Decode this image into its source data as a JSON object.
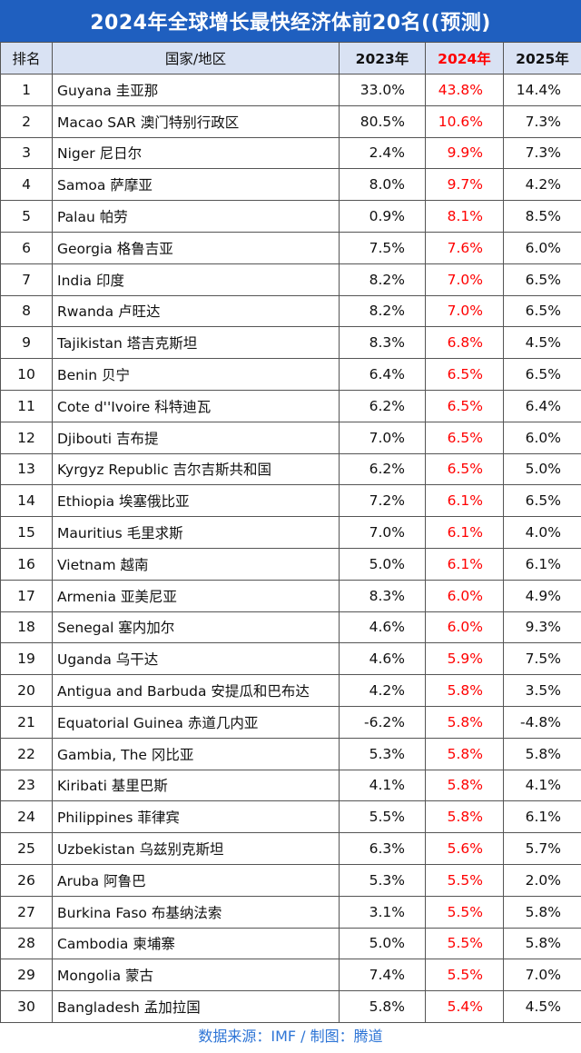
{
  "title": "2024年全球增长最快经济体前20名((预测)",
  "source_note": "数据来源：IMF / 制图：腾道",
  "colors": {
    "header_bar": "#1f5fbf",
    "header_row": "#d9e2f3",
    "highlight": "#ff0000",
    "source_text": "#2e75d6"
  },
  "chart_data": {
    "type": "table",
    "columns": [
      "排名",
      "国家/地区",
      "2023年",
      "2024年",
      "2025年"
    ],
    "highlighted_column": "2024年",
    "rows": [
      [
        "1",
        "Guyana 圭亚那",
        "33.0%",
        "43.8%",
        "14.4%"
      ],
      [
        "2",
        "Macao SAR 澳门特别行政区",
        "80.5%",
        "10.6%",
        "7.3%"
      ],
      [
        "3",
        "Niger 尼日尔",
        "2.4%",
        "9.9%",
        "7.3%"
      ],
      [
        "4",
        "Samoa 萨摩亚",
        "8.0%",
        "9.7%",
        "4.2%"
      ],
      [
        "5",
        "Palau 帕劳",
        "0.9%",
        "8.1%",
        "8.5%"
      ],
      [
        "6",
        "Georgia 格鲁吉亚",
        "7.5%",
        "7.6%",
        "6.0%"
      ],
      [
        "7",
        "India 印度",
        "8.2%",
        "7.0%",
        "6.5%"
      ],
      [
        "8",
        "Rwanda 卢旺达",
        "8.2%",
        "7.0%",
        "6.5%"
      ],
      [
        "9",
        "Tajikistan 塔吉克斯坦",
        "8.3%",
        "6.8%",
        "4.5%"
      ],
      [
        "10",
        "Benin 贝宁",
        "6.4%",
        "6.5%",
        "6.5%"
      ],
      [
        "11",
        "Cote d''Ivoire 科特迪瓦",
        "6.2%",
        "6.5%",
        "6.4%"
      ],
      [
        "12",
        "Djibouti 吉布提",
        "7.0%",
        "6.5%",
        "6.0%"
      ],
      [
        "13",
        "Kyrgyz Republic 吉尔吉斯共和国",
        "6.2%",
        "6.5%",
        "5.0%"
      ],
      [
        "14",
        "Ethiopia 埃塞俄比亚",
        "7.2%",
        "6.1%",
        "6.5%"
      ],
      [
        "15",
        "Mauritius 毛里求斯",
        "7.0%",
        "6.1%",
        "4.0%"
      ],
      [
        "16",
        "Vietnam 越南",
        "5.0%",
        "6.1%",
        "6.1%"
      ],
      [
        "17",
        "Armenia 亚美尼亚",
        "8.3%",
        "6.0%",
        "4.9%"
      ],
      [
        "18",
        "Senegal 塞内加尔",
        "4.6%",
        "6.0%",
        "9.3%"
      ],
      [
        "19",
        "Uganda 乌干达",
        "4.6%",
        "5.9%",
        "7.5%"
      ],
      [
        "20",
        "Antigua and Barbuda 安提瓜和巴布达",
        "4.2%",
        "5.8%",
        "3.5%"
      ],
      [
        "21",
        "Equatorial Guinea 赤道几内亚",
        "-6.2%",
        "5.8%",
        "-4.8%"
      ],
      [
        "22",
        "Gambia, The 冈比亚",
        "5.3%",
        "5.8%",
        "5.8%"
      ],
      [
        "23",
        "Kiribati 基里巴斯",
        "4.1%",
        "5.8%",
        "4.1%"
      ],
      [
        "24",
        "Philippines 菲律宾",
        "5.5%",
        "5.8%",
        "6.1%"
      ],
      [
        "25",
        "Uzbekistan 乌兹别克斯坦",
        "6.3%",
        "5.6%",
        "5.7%"
      ],
      [
        "26",
        "Aruba 阿鲁巴",
        "5.3%",
        "5.5%",
        "2.0%"
      ],
      [
        "27",
        "Burkina Faso 布基纳法索",
        "3.1%",
        "5.5%",
        "5.8%"
      ],
      [
        "28",
        "Cambodia 柬埔寨",
        "5.0%",
        "5.5%",
        "5.8%"
      ],
      [
        "29",
        "Mongolia 蒙古",
        "7.4%",
        "5.5%",
        "7.0%"
      ],
      [
        "30",
        "Bangladesh 孟加拉国",
        "5.8%",
        "5.4%",
        "4.5%"
      ]
    ]
  }
}
